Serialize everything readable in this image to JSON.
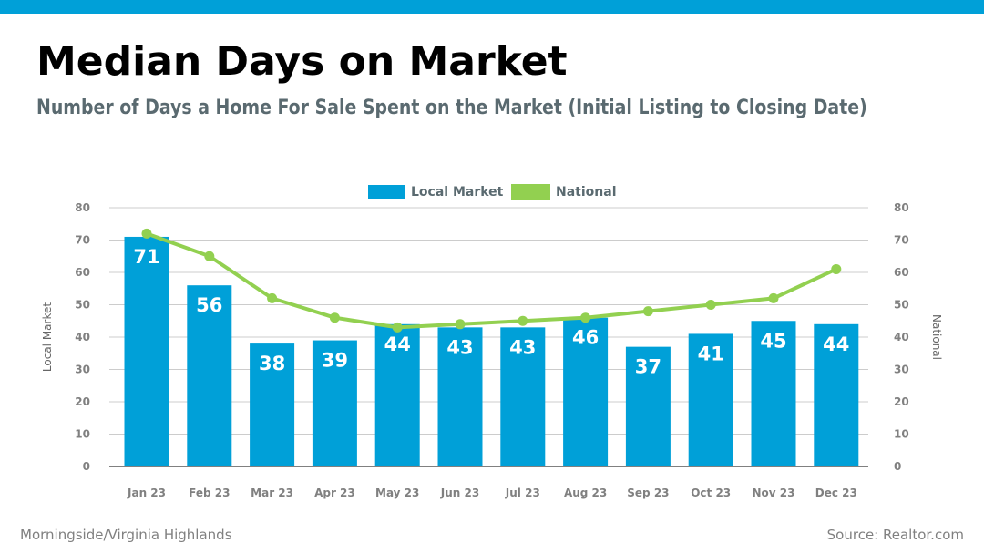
{
  "header": {
    "title": "Median Days on Market",
    "subtitle": "Number of Days a Home For Sale Spent on the Market (Initial Listing to Closing Date)"
  },
  "footer": {
    "left": "Morningside/Virginia Highlands",
    "right": "Source: Realtor.com"
  },
  "colors": {
    "accent": "#00a0d8",
    "national": "#92d050",
    "grid": "#cccccc"
  },
  "chart_data": {
    "type": "bar",
    "categories": [
      "Jan 23",
      "Feb 23",
      "Mar 23",
      "Apr 23",
      "May 23",
      "Jun 23",
      "Jul 23",
      "Aug 23",
      "Sep 23",
      "Oct 23",
      "Nov 23",
      "Dec 23"
    ],
    "series": [
      {
        "name": "Local Market",
        "type": "bar",
        "color": "#00a0d8",
        "values": [
          71,
          56,
          38,
          39,
          44,
          43,
          43,
          46,
          37,
          41,
          45,
          44
        ]
      },
      {
        "name": "National",
        "type": "line",
        "color": "#92d050",
        "values": [
          72,
          65,
          52,
          46,
          43,
          44,
          45,
          46,
          48,
          50,
          52,
          61
        ]
      }
    ],
    "ylabel_left": "Local Market",
    "ylabel_right": "National",
    "ylim": [
      0,
      80
    ],
    "yticks": [
      0,
      10,
      20,
      30,
      40,
      50,
      60,
      70,
      80
    ],
    "grid": true,
    "legend": "top-center",
    "data_labels": true
  }
}
